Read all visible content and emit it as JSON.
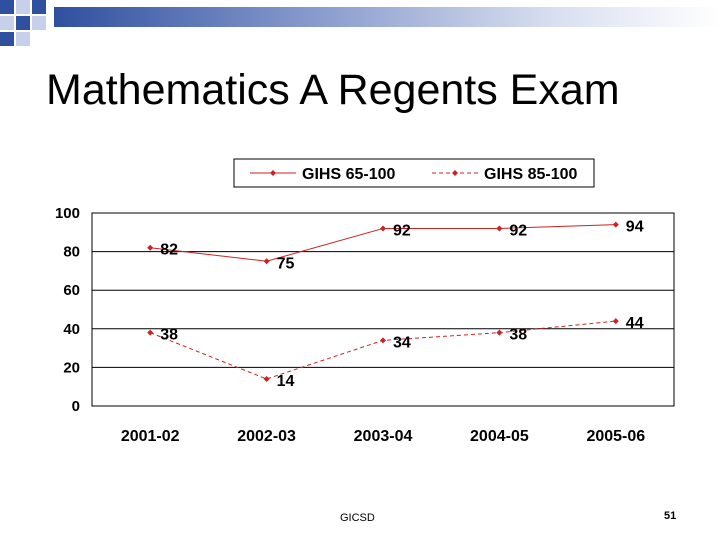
{
  "slide": {
    "title": "Mathematics A Regents Exam",
    "footer": "GICSD",
    "page_number": "51"
  },
  "chart_data": {
    "type": "line",
    "title": "",
    "xlabel": "",
    "ylabel": "",
    "categories": [
      "2001-02",
      "2002-03",
      "2003-04",
      "2004-05",
      "2005-06"
    ],
    "ylim": [
      0,
      100
    ],
    "yticks": [
      0,
      20,
      40,
      60,
      80,
      100
    ],
    "grid": "horizontal",
    "legend": "top-center",
    "series": [
      {
        "name": "GIHS 65-100",
        "values": [
          82,
          75,
          92,
          92,
          94
        ],
        "line_style": "solid",
        "color": "#cc2222"
      },
      {
        "name": "GIHS 85-100",
        "values": [
          38,
          14,
          34,
          38,
          44
        ],
        "line_style": "dashed",
        "color": "#cc2222"
      }
    ]
  }
}
